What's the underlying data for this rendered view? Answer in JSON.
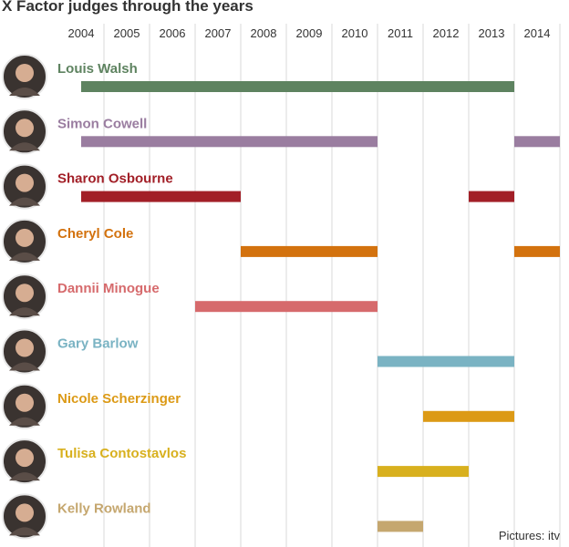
{
  "title": "X Factor judges through the years",
  "credit": "Pictures: itv",
  "chart_data": {
    "type": "timeline",
    "title": "X Factor judges through the years",
    "years": [
      "2004",
      "2005",
      "2006",
      "2007",
      "2008",
      "2009",
      "2010",
      "2011",
      "2012",
      "2013",
      "2014"
    ],
    "xlim": [
      2004,
      2014
    ],
    "judges": [
      {
        "name": "Louis Walsh",
        "color": "#5e8360",
        "segments": [
          [
            2004,
            2013.5
          ]
        ]
      },
      {
        "name": "Simon Cowell",
        "color": "#9a7da0",
        "segments": [
          [
            2004,
            2010.5
          ],
          [
            2013.5,
            2014.5
          ]
        ]
      },
      {
        "name": "Sharon Osbourne",
        "color": "#a21f27",
        "segments": [
          [
            2004,
            2007.5
          ],
          [
            2012.5,
            2013.5
          ]
        ]
      },
      {
        "name": "Cheryl Cole",
        "color": "#d3720e",
        "segments": [
          [
            2007.5,
            2010.5
          ],
          [
            2013.5,
            2014.5
          ]
        ]
      },
      {
        "name": "Dannii Minogue",
        "color": "#d66a6c",
        "segments": [
          [
            2006.5,
            2010.5
          ]
        ]
      },
      {
        "name": "Gary Barlow",
        "color": "#7ab3c3",
        "segments": [
          [
            2010.5,
            2013.5
          ]
        ]
      },
      {
        "name": "Nicole Scherzinger",
        "color": "#dc9a16",
        "segments": [
          [
            2011.5,
            2013.5
          ]
        ]
      },
      {
        "name": "Tulisa Contostavlos",
        "color": "#d8b01e",
        "segments": [
          [
            2010.5,
            2012.5
          ]
        ]
      },
      {
        "name": "Kelly Rowland",
        "color": "#c5a76f",
        "segments": [
          [
            2010.5,
            2011.5
          ]
        ]
      }
    ]
  }
}
